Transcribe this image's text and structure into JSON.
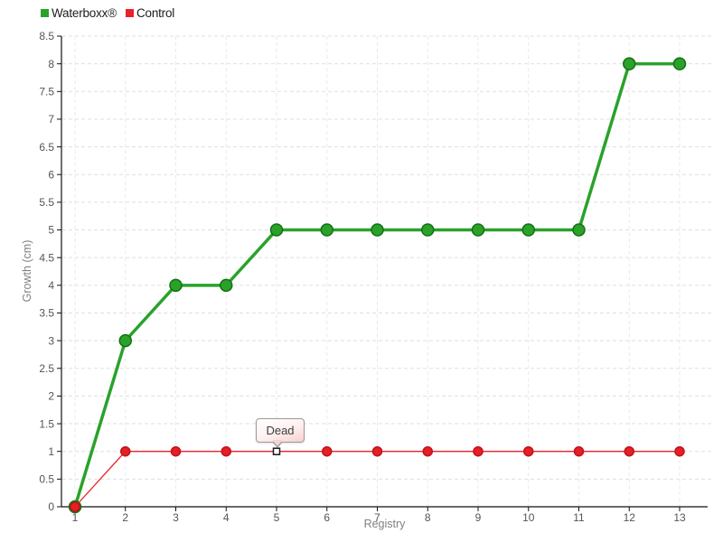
{
  "chart_data": {
    "type": "line",
    "title": "",
    "xlabel": "Registry",
    "ylabel": "Growth (cm)",
    "x": [
      1,
      2,
      3,
      4,
      5,
      6,
      7,
      8,
      9,
      10,
      11,
      12,
      13
    ],
    "xlim": [
      1,
      13
    ],
    "ylim": [
      0,
      8.5
    ],
    "ytick_step": 0.5,
    "grid": true,
    "legend_position": "top-left",
    "series": [
      {
        "name": "Waterboxx®",
        "color": "#2aa22a",
        "marker_fill": "#2aa22a",
        "marker_edge": "#136f13",
        "marker": "circle",
        "line_width": 3.5,
        "marker_radius": 6.5,
        "values": [
          0,
          3,
          4,
          4,
          5,
          5,
          5,
          5,
          5,
          5,
          5,
          8,
          8
        ]
      },
      {
        "name": "Control",
        "color": "#e8212b",
        "marker_fill": "#e41f26",
        "marker_edge": "#c1121a",
        "marker": "circle",
        "line_width": 1.3,
        "marker_radius": 5,
        "values": [
          0,
          1,
          1,
          1,
          1,
          1,
          1,
          1,
          1,
          1,
          1,
          1,
          1
        ]
      }
    ],
    "annotation": {
      "label": "Dead",
      "series": "Control",
      "x": 5,
      "y": 1,
      "marker": "white-square",
      "marker_edge": "#1a1a1a"
    },
    "style": {
      "axis_color": "#111111",
      "grid_h_color": "#dfdfdf",
      "grid_v_color": "#eaeaea",
      "tick_label_color": "#555555",
      "axis_title_color": "#818181"
    }
  }
}
